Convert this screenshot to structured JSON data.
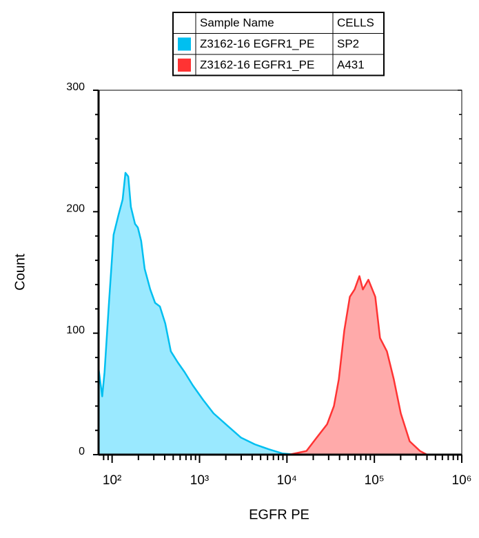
{
  "chart_data": {
    "type": "histogram-overlay",
    "x_label": "EGFR PE",
    "y_label": "Count",
    "legend_header": [
      "Sample Name",
      "CELLS"
    ],
    "xscale": "log",
    "xlim": [
      70,
      1000000
    ],
    "ylim": [
      0,
      300
    ],
    "xticks": [
      {
        "value": 100,
        "label": "10²"
      },
      {
        "value": 1000,
        "label": "10³"
      },
      {
        "value": 10000,
        "label": "10⁴"
      },
      {
        "value": 100000,
        "label": "10⁵"
      },
      {
        "value": 1000000,
        "label": "10⁶"
      }
    ],
    "xminor_ticks": [
      80,
      90,
      200,
      300,
      400,
      500,
      600,
      700,
      800,
      900,
      2000,
      3000,
      4000,
      5000,
      6000,
      7000,
      8000,
      9000,
      20000,
      30000,
      40000,
      50000,
      60000,
      70000,
      80000,
      90000,
      200000,
      300000,
      400000,
      500000,
      600000,
      700000,
      800000,
      900000
    ],
    "yticks": [
      0,
      100,
      200,
      300
    ],
    "yminor_ticks": [
      20,
      40,
      60,
      80,
      120,
      140,
      160,
      180,
      220,
      240,
      260,
      280
    ],
    "series": [
      {
        "name": "Z3162-16 EGFR1_PE",
        "cells": "SP2",
        "color": "#00bff0",
        "fill": "#9ae9ff",
        "x": [
          70,
          77,
          82,
          92,
          104,
          118,
          132,
          142,
          153,
          164,
          183,
          197,
          215,
          236,
          273,
          310,
          352,
          406,
          470,
          564,
          675,
          839,
          1102,
          1445,
          2075,
          2985,
          4290,
          6165,
          8850,
          12735,
          1000000
        ],
        "values": [
          71,
          48,
          68,
          125,
          181,
          197,
          210,
          232,
          229,
          204,
          190,
          187,
          176,
          153,
          136,
          125,
          122,
          108,
          85,
          76,
          68,
          57,
          45,
          34,
          24,
          14,
          8.5,
          4.5,
          1,
          0,
          0
        ]
      },
      {
        "name": "Z3162-16 EGFR1_PE",
        "cells": "A431",
        "color": "#ff3333",
        "fill": "#ffaaaa",
        "x": [
          70,
          10620,
          16700,
          21900,
          28800,
          34500,
          39200,
          45300,
          52400,
          59400,
          67500,
          73900,
          85500,
          102400,
          116200,
          139300,
          167100,
          200400,
          253600,
          332700,
          399000
        ],
        "values": [
          0,
          0,
          3,
          14,
          25,
          40,
          62,
          102,
          130,
          136,
          147,
          136,
          144,
          130,
          96,
          85,
          62,
          34,
          11,
          3,
          0
        ]
      }
    ]
  }
}
